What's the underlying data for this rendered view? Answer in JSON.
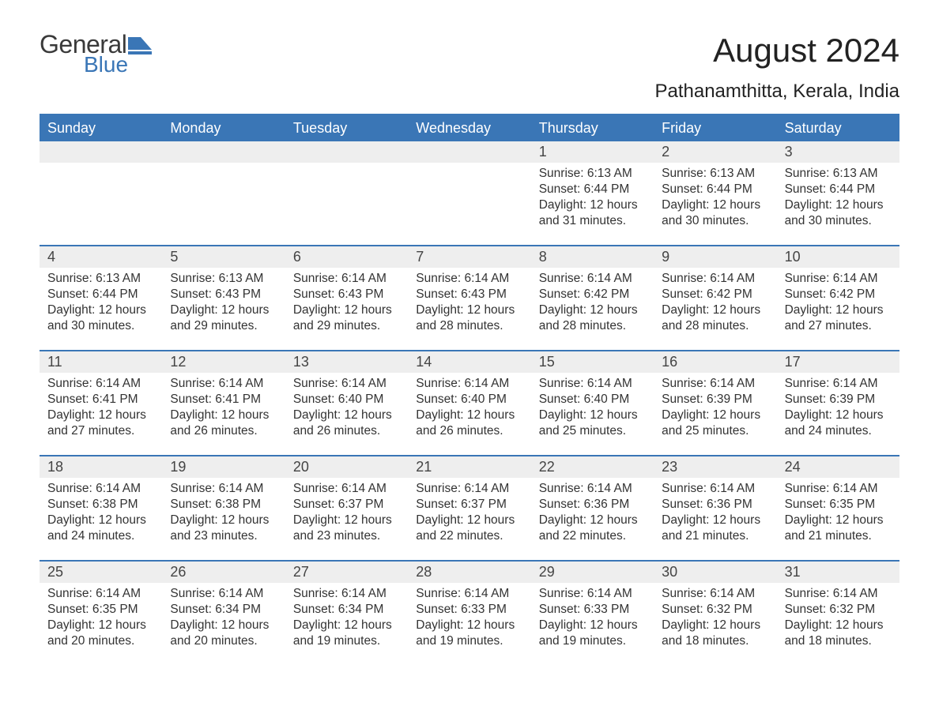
{
  "logo": {
    "text_general": "General",
    "text_blue": "Blue",
    "icon_color": "#3a76b6"
  },
  "title": "August 2024",
  "subtitle": "Pathanamthitta, Kerala, India",
  "colors": {
    "header_bg": "#3a76b6",
    "header_text": "#ffffff",
    "daynum_bg": "#eeeeee",
    "body_text": "#333333",
    "border": "#3a76b6"
  },
  "weekdays": [
    "Sunday",
    "Monday",
    "Tuesday",
    "Wednesday",
    "Thursday",
    "Friday",
    "Saturday"
  ],
  "weeks": [
    [
      null,
      null,
      null,
      null,
      {
        "n": "1",
        "sunrise": "6:13 AM",
        "sunset": "6:44 PM",
        "daylight": "12 hours and 31 minutes."
      },
      {
        "n": "2",
        "sunrise": "6:13 AM",
        "sunset": "6:44 PM",
        "daylight": "12 hours and 30 minutes."
      },
      {
        "n": "3",
        "sunrise": "6:13 AM",
        "sunset": "6:44 PM",
        "daylight": "12 hours and 30 minutes."
      }
    ],
    [
      {
        "n": "4",
        "sunrise": "6:13 AM",
        "sunset": "6:44 PM",
        "daylight": "12 hours and 30 minutes."
      },
      {
        "n": "5",
        "sunrise": "6:13 AM",
        "sunset": "6:43 PM",
        "daylight": "12 hours and 29 minutes."
      },
      {
        "n": "6",
        "sunrise": "6:14 AM",
        "sunset": "6:43 PM",
        "daylight": "12 hours and 29 minutes."
      },
      {
        "n": "7",
        "sunrise": "6:14 AM",
        "sunset": "6:43 PM",
        "daylight": "12 hours and 28 minutes."
      },
      {
        "n": "8",
        "sunrise": "6:14 AM",
        "sunset": "6:42 PM",
        "daylight": "12 hours and 28 minutes."
      },
      {
        "n": "9",
        "sunrise": "6:14 AM",
        "sunset": "6:42 PM",
        "daylight": "12 hours and 28 minutes."
      },
      {
        "n": "10",
        "sunrise": "6:14 AM",
        "sunset": "6:42 PM",
        "daylight": "12 hours and 27 minutes."
      }
    ],
    [
      {
        "n": "11",
        "sunrise": "6:14 AM",
        "sunset": "6:41 PM",
        "daylight": "12 hours and 27 minutes."
      },
      {
        "n": "12",
        "sunrise": "6:14 AM",
        "sunset": "6:41 PM",
        "daylight": "12 hours and 26 minutes."
      },
      {
        "n": "13",
        "sunrise": "6:14 AM",
        "sunset": "6:40 PM",
        "daylight": "12 hours and 26 minutes."
      },
      {
        "n": "14",
        "sunrise": "6:14 AM",
        "sunset": "6:40 PM",
        "daylight": "12 hours and 26 minutes."
      },
      {
        "n": "15",
        "sunrise": "6:14 AM",
        "sunset": "6:40 PM",
        "daylight": "12 hours and 25 minutes."
      },
      {
        "n": "16",
        "sunrise": "6:14 AM",
        "sunset": "6:39 PM",
        "daylight": "12 hours and 25 minutes."
      },
      {
        "n": "17",
        "sunrise": "6:14 AM",
        "sunset": "6:39 PM",
        "daylight": "12 hours and 24 minutes."
      }
    ],
    [
      {
        "n": "18",
        "sunrise": "6:14 AM",
        "sunset": "6:38 PM",
        "daylight": "12 hours and 24 minutes."
      },
      {
        "n": "19",
        "sunrise": "6:14 AM",
        "sunset": "6:38 PM",
        "daylight": "12 hours and 23 minutes."
      },
      {
        "n": "20",
        "sunrise": "6:14 AM",
        "sunset": "6:37 PM",
        "daylight": "12 hours and 23 minutes."
      },
      {
        "n": "21",
        "sunrise": "6:14 AM",
        "sunset": "6:37 PM",
        "daylight": "12 hours and 22 minutes."
      },
      {
        "n": "22",
        "sunrise": "6:14 AM",
        "sunset": "6:36 PM",
        "daylight": "12 hours and 22 minutes."
      },
      {
        "n": "23",
        "sunrise": "6:14 AM",
        "sunset": "6:36 PM",
        "daylight": "12 hours and 21 minutes."
      },
      {
        "n": "24",
        "sunrise": "6:14 AM",
        "sunset": "6:35 PM",
        "daylight": "12 hours and 21 minutes."
      }
    ],
    [
      {
        "n": "25",
        "sunrise": "6:14 AM",
        "sunset": "6:35 PM",
        "daylight": "12 hours and 20 minutes."
      },
      {
        "n": "26",
        "sunrise": "6:14 AM",
        "sunset": "6:34 PM",
        "daylight": "12 hours and 20 minutes."
      },
      {
        "n": "27",
        "sunrise": "6:14 AM",
        "sunset": "6:34 PM",
        "daylight": "12 hours and 19 minutes."
      },
      {
        "n": "28",
        "sunrise": "6:14 AM",
        "sunset": "6:33 PM",
        "daylight": "12 hours and 19 minutes."
      },
      {
        "n": "29",
        "sunrise": "6:14 AM",
        "sunset": "6:33 PM",
        "daylight": "12 hours and 19 minutes."
      },
      {
        "n": "30",
        "sunrise": "6:14 AM",
        "sunset": "6:32 PM",
        "daylight": "12 hours and 18 minutes."
      },
      {
        "n": "31",
        "sunrise": "6:14 AM",
        "sunset": "6:32 PM",
        "daylight": "12 hours and 18 minutes."
      }
    ]
  ],
  "labels": {
    "sunrise": "Sunrise: ",
    "sunset": "Sunset: ",
    "daylight": "Daylight: "
  }
}
